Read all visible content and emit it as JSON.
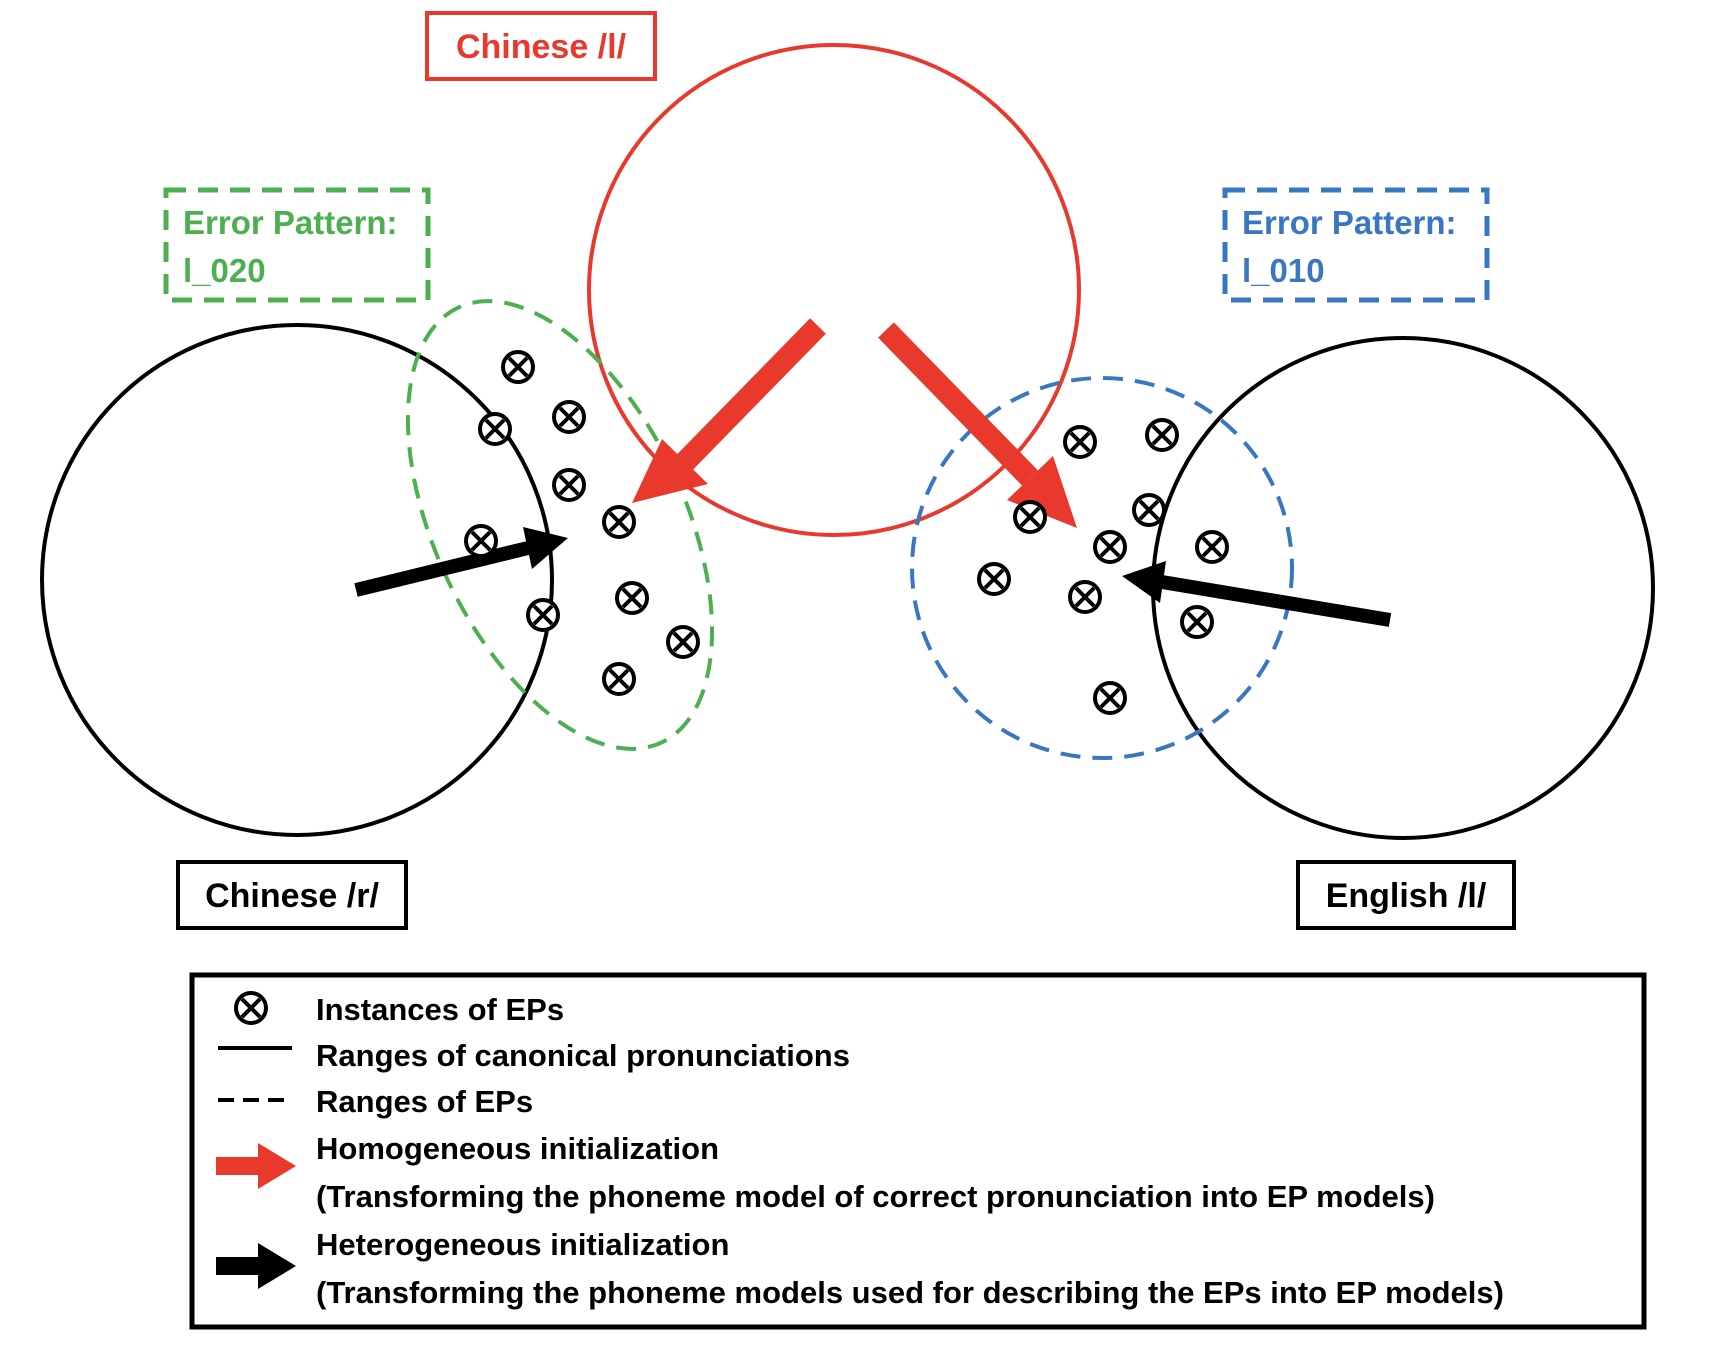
{
  "labels": {
    "chinese_l": "Chinese /l/",
    "chinese_r": "Chinese /r/",
    "english_l": "English /l/",
    "ep_left_line1": "Error Pattern:",
    "ep_left_line2": "l_020",
    "ep_right_line1": "Error Pattern:",
    "ep_right_line2": "l_010"
  },
  "legend": {
    "instances": "Instances of EPs",
    "canonical": "Ranges of canonical pronunciations",
    "eps": "Ranges of EPs",
    "homogeneous_title": "Homogeneous initialization",
    "homogeneous_desc": "(Transforming the phoneme model of correct pronunciation into EP models)",
    "heterogeneous_title": "Heterogeneous initialization",
    "heterogeneous_desc": "(Transforming the phoneme models used for describing the EPs into EP models)"
  },
  "colors": {
    "red": "#e8392c",
    "green": "#4caf50",
    "blue": "#3a77c2",
    "black": "#000000"
  }
}
